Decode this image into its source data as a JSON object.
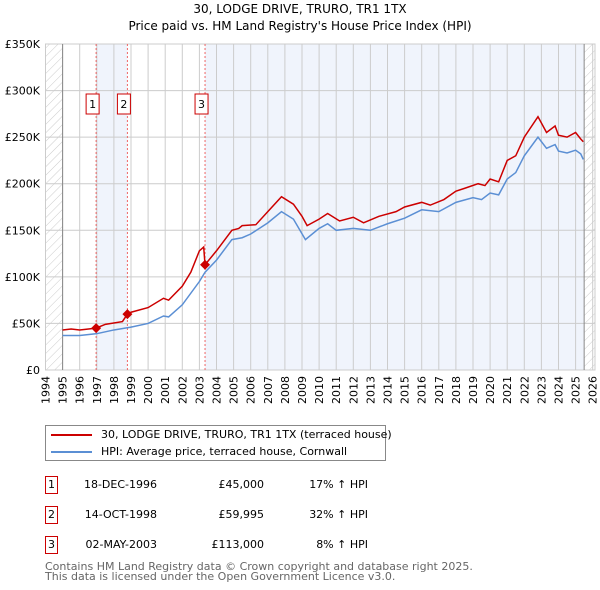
{
  "chart_data": {
    "type": "line",
    "title": "30, LODGE DRIVE, TRURO, TR1 1TX",
    "subtitle": "Price paid vs. HM Land Registry's House Price Index (HPI)",
    "xlim": [
      1994,
      2026
    ],
    "ylim": [
      0,
      350000
    ],
    "grid": true,
    "y_ticks": [
      {
        "v": 0,
        "label": "£0"
      },
      {
        "v": 50000,
        "label": "£50K"
      },
      {
        "v": 100000,
        "label": "£100K"
      },
      {
        "v": 150000,
        "label": "£150K"
      },
      {
        "v": 200000,
        "label": "£200K"
      },
      {
        "v": 250000,
        "label": "£250K"
      },
      {
        "v": 300000,
        "label": "£300K"
      },
      {
        "v": 350000,
        "label": "£350K"
      }
    ],
    "x_ticks": [
      "1994",
      "1995",
      "1996",
      "1997",
      "1998",
      "1999",
      "2000",
      "2001",
      "2002",
      "2003",
      "2004",
      "2005",
      "2006",
      "2007",
      "2008",
      "2009",
      "2010",
      "2011",
      "2012",
      "2013",
      "2014",
      "2015",
      "2016",
      "2017",
      "2018",
      "2019",
      "2020",
      "2021",
      "2022",
      "2023",
      "2024",
      "2025",
      "2026"
    ],
    "data_end": 2025.5,
    "series": [
      {
        "name": "30, LODGE DRIVE, TRURO, TR1 1TX (terraced house)",
        "color": "#cc0000",
        "points": [
          [
            1995,
            43
          ],
          [
            1995.5,
            44
          ],
          [
            1996,
            43
          ],
          [
            1996.96,
            45
          ],
          [
            1997.5,
            49
          ],
          [
            1998.5,
            52
          ],
          [
            1998.79,
            60
          ],
          [
            1999,
            62
          ],
          [
            2000,
            67
          ],
          [
            2000.9,
            77
          ],
          [
            2001.2,
            75
          ],
          [
            2002,
            90
          ],
          [
            2002.5,
            105
          ],
          [
            2003,
            128
          ],
          [
            2003.25,
            132
          ],
          [
            2003.33,
            113
          ],
          [
            2004,
            128
          ],
          [
            2004.9,
            150
          ],
          [
            2005.3,
            152
          ],
          [
            2005.5,
            155
          ],
          [
            2006.3,
            156
          ],
          [
            2007,
            170
          ],
          [
            2007.8,
            186
          ],
          [
            2008.5,
            178
          ],
          [
            2009,
            165
          ],
          [
            2009.3,
            155
          ],
          [
            2010,
            162
          ],
          [
            2010.5,
            168
          ],
          [
            2011.2,
            160
          ],
          [
            2012,
            164
          ],
          [
            2012.6,
            158
          ],
          [
            2013.5,
            165
          ],
          [
            2014.5,
            170
          ],
          [
            2015,
            175
          ],
          [
            2016,
            180
          ],
          [
            2016.5,
            177
          ],
          [
            2017.3,
            183
          ],
          [
            2018,
            192
          ],
          [
            2018.5,
            195
          ],
          [
            2019.3,
            200
          ],
          [
            2019.7,
            198
          ],
          [
            2020,
            205
          ],
          [
            2020.5,
            202
          ],
          [
            2021,
            225
          ],
          [
            2021.5,
            230
          ],
          [
            2022,
            250
          ],
          [
            2022.8,
            272
          ],
          [
            2023.3,
            255
          ],
          [
            2023.8,
            262
          ],
          [
            2024,
            252
          ],
          [
            2024.5,
            250
          ],
          [
            2025,
            255
          ],
          [
            2025.3,
            248
          ],
          [
            2025.45,
            245
          ]
        ]
      },
      {
        "name": "HPI: Average price, terraced house, Cornwall",
        "color": "#5b8fd4",
        "points": [
          [
            1995,
            37
          ],
          [
            1996,
            37
          ],
          [
            1997,
            39
          ],
          [
            1998,
            43
          ],
          [
            1999,
            46
          ],
          [
            2000,
            50
          ],
          [
            2000.9,
            58
          ],
          [
            2001.2,
            57
          ],
          [
            2002,
            70
          ],
          [
            2003,
            95
          ],
          [
            2003.33,
            105
          ],
          [
            2004,
            118
          ],
          [
            2004.9,
            140
          ],
          [
            2005.5,
            142
          ],
          [
            2006,
            146
          ],
          [
            2007,
            158
          ],
          [
            2007.8,
            170
          ],
          [
            2008.5,
            162
          ],
          [
            2009.2,
            140
          ],
          [
            2010,
            152
          ],
          [
            2010.5,
            157
          ],
          [
            2011,
            150
          ],
          [
            2012,
            152
          ],
          [
            2013,
            150
          ],
          [
            2014,
            157
          ],
          [
            2015,
            163
          ],
          [
            2016,
            172
          ],
          [
            2017,
            170
          ],
          [
            2018,
            180
          ],
          [
            2019,
            185
          ],
          [
            2019.5,
            183
          ],
          [
            2020,
            190
          ],
          [
            2020.5,
            188
          ],
          [
            2021,
            205
          ],
          [
            2021.5,
            212
          ],
          [
            2022,
            230
          ],
          [
            2022.8,
            250
          ],
          [
            2023.3,
            238
          ],
          [
            2023.8,
            242
          ],
          [
            2024,
            235
          ],
          [
            2024.5,
            233
          ],
          [
            2025,
            236
          ],
          [
            2025.3,
            232
          ],
          [
            2025.45,
            226
          ]
        ]
      }
    ],
    "value_unit": "thousands GBP",
    "sales": [
      {
        "n": "1",
        "date": "18-DEC-1996",
        "year": 1996.96,
        "price": "£45,000",
        "value": 45,
        "hpi": "17% ↑ HPI"
      },
      {
        "n": "2",
        "date": "14-OCT-1998",
        "year": 1998.79,
        "price": "£59,995",
        "value": 60,
        "hpi": "32% ↑ HPI"
      },
      {
        "n": "3",
        "date": "02-MAY-2003",
        "year": 2003.33,
        "price": "£113,000",
        "value": 113,
        "hpi": "8% ↑ HPI"
      }
    ]
  },
  "legend": {
    "red": "30, LODGE DRIVE, TRURO, TR1 1TX (terraced house)",
    "blue": "HPI: Average price, terraced house, Cornwall"
  },
  "footer": {
    "line1": "Contains HM Land Registry data © Crown copyright and database right 2025.",
    "line2": "This data is licensed under the Open Government Licence v3.0."
  }
}
